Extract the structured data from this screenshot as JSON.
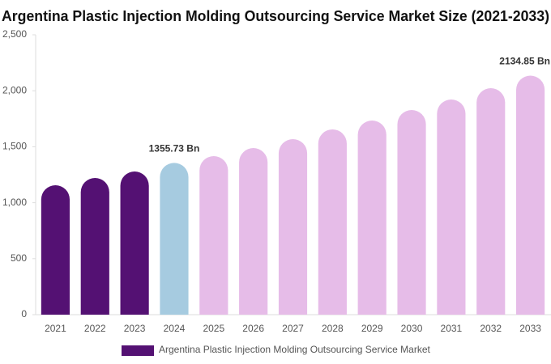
{
  "chart_data": {
    "type": "bar",
    "title": "Argentina Plastic Injection Molding Outsourcing Service Market Size (2021-2033)",
    "categories": [
      "2021",
      "2022",
      "2023",
      "2024",
      "2025",
      "2026",
      "2027",
      "2028",
      "2029",
      "2030",
      "2031",
      "2032",
      "2033"
    ],
    "series": [
      {
        "name": "Argentina Plastic Injection Molding Outsourcing Service Market",
        "color": "#541173",
        "values": [
          1156,
          1221,
          1279,
          1355.73,
          1416,
          1488,
          1568,
          1655,
          1734,
          1828,
          1922,
          2023,
          2134.85
        ],
        "value_labels": [
          null,
          null,
          null,
          "1355.73 Bn",
          null,
          null,
          null,
          null,
          null,
          null,
          null,
          null,
          "2134.85 Bn"
        ],
        "colors": [
          "#541173",
          "#541173",
          "#541173",
          "#a6cbe0",
          "#e6bce8",
          "#e6bce8",
          "#e6bce8",
          "#e6bce8",
          "#e6bce8",
          "#e6bce8",
          "#e6bce8",
          "#e6bce8",
          "#e6bce8"
        ]
      }
    ],
    "ylim": [
      0,
      2500
    ],
    "yticks": [
      0,
      500,
      {
        "value": 1000,
        "label": "1,000"
      },
      {
        "value": 1500,
        "label": "1,500"
      },
      {
        "value": 2000,
        "label": "2,000"
      },
      {
        "value": 2500,
        "label": "2,500"
      }
    ],
    "grid": false
  }
}
